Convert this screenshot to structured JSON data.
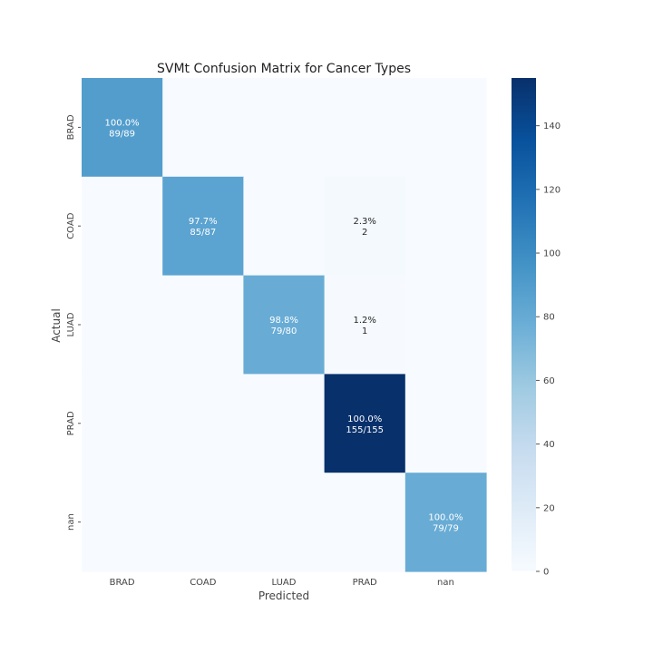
{
  "chart_data": {
    "type": "heatmap",
    "title": "SVMt Confusion Matrix for Cancer Types",
    "xlabel": "Predicted",
    "ylabel": "Actual",
    "x_categories": [
      "BRAD",
      "COAD",
      "LUAD",
      "PRAD",
      "nan"
    ],
    "y_categories": [
      "BRAD",
      "COAD",
      "LUAD",
      "PRAD",
      "nan"
    ],
    "values": [
      [
        89,
        0,
        0,
        0,
        0
      ],
      [
        0,
        85,
        0,
        2,
        0
      ],
      [
        0,
        0,
        79,
        1,
        0
      ],
      [
        0,
        0,
        0,
        155,
        0
      ],
      [
        0,
        0,
        0,
        0,
        79
      ]
    ],
    "annotations": [
      [
        {
          "pct": "100.0%",
          "count": "89/89"
        },
        null,
        null,
        null,
        null
      ],
      [
        null,
        {
          "pct": "97.7%",
          "count": "85/87"
        },
        null,
        {
          "pct": "2.3%",
          "count": "2"
        },
        null
      ],
      [
        null,
        null,
        {
          "pct": "98.8%",
          "count": "79/80"
        },
        {
          "pct": "1.2%",
          "count": "1"
        },
        null
      ],
      [
        null,
        null,
        null,
        {
          "pct": "100.0%",
          "count": "155/155"
        },
        null
      ],
      [
        null,
        null,
        null,
        null,
        {
          "pct": "100.0%",
          "count": "79/79"
        }
      ]
    ],
    "colorbar": {
      "range": [
        0,
        155
      ],
      "ticks": [
        "0",
        "20",
        "40",
        "60",
        "80",
        "100",
        "120",
        "140"
      ],
      "colormap": "Blues"
    },
    "grid": false,
    "legend": "colorbar-right"
  }
}
